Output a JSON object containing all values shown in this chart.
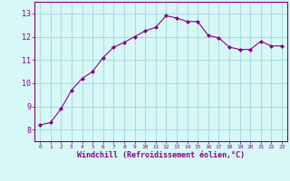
{
  "x": [
    0,
    1,
    2,
    3,
    4,
    5,
    6,
    7,
    8,
    9,
    10,
    11,
    12,
    13,
    14,
    15,
    16,
    17,
    18,
    19,
    20,
    21,
    22,
    23
  ],
  "y": [
    8.2,
    8.3,
    8.9,
    9.7,
    10.2,
    10.5,
    11.1,
    11.55,
    11.75,
    12.0,
    12.25,
    12.4,
    12.9,
    12.8,
    12.65,
    12.65,
    12.05,
    11.95,
    11.55,
    11.45,
    11.45,
    11.8,
    11.6,
    11.6
  ],
  "line_color": "#880088",
  "marker": "D",
  "marker_size": 2,
  "bg_color": "#d8f8f8",
  "grid_color": "#aadddd",
  "xlabel": "Windchill (Refroidissement éolien,°C)",
  "xlabel_color": "#880088",
  "tick_color": "#880088",
  "ylim": [
    7.5,
    13.5
  ],
  "xlim": [
    -0.5,
    23.5
  ],
  "yticks": [
    8,
    9,
    10,
    11,
    12,
    13
  ],
  "xticks": [
    0,
    1,
    2,
    3,
    4,
    5,
    6,
    7,
    8,
    9,
    10,
    11,
    12,
    13,
    14,
    15,
    16,
    17,
    18,
    19,
    20,
    21,
    22,
    23
  ]
}
